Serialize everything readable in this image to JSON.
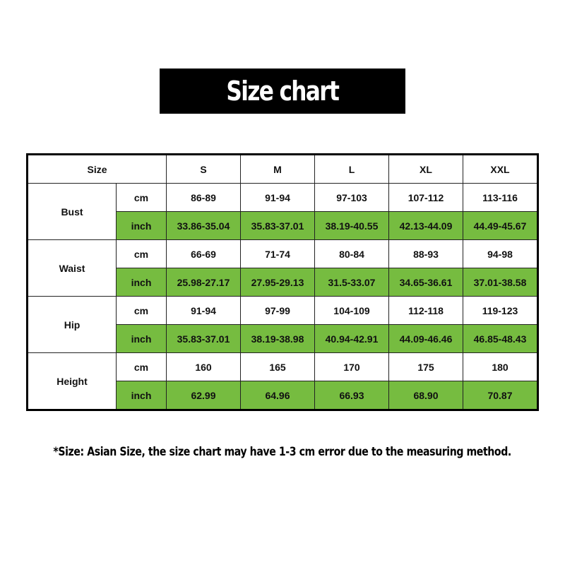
{
  "title": "Size chart",
  "accent_color": "#76bc40",
  "header": {
    "size_label": "Size",
    "sizes": [
      "S",
      "M",
      "L",
      "XL",
      "XXL"
    ]
  },
  "rows": [
    {
      "label": "Bust",
      "cm_unit": "cm",
      "cm": [
        "86-89",
        "91-94",
        "97-103",
        "107-112",
        "113-116"
      ],
      "inch_unit": "inch",
      "inch": [
        "33.86-35.04",
        "35.83-37.01",
        "38.19-40.55",
        "42.13-44.09",
        "44.49-45.67"
      ]
    },
    {
      "label": "Waist",
      "cm_unit": "cm",
      "cm": [
        "66-69",
        "71-74",
        "80-84",
        "88-93",
        "94-98"
      ],
      "inch_unit": "inch",
      "inch": [
        "25.98-27.17",
        "27.95-29.13",
        "31.5-33.07",
        "34.65-36.61",
        "37.01-38.58"
      ]
    },
    {
      "label": "Hip",
      "cm_unit": "cm",
      "cm": [
        "91-94",
        "97-99",
        "104-109",
        "112-118",
        "119-123"
      ],
      "inch_unit": "inch",
      "inch": [
        "35.83-37.01",
        "38.19-38.98",
        "40.94-42.91",
        "44.09-46.46",
        "46.85-48.43"
      ]
    },
    {
      "label": "Height",
      "cm_unit": "cm",
      "cm": [
        "160",
        "165",
        "170",
        "175",
        "180"
      ],
      "inch_unit": "inch",
      "inch": [
        "62.99",
        "64.96",
        "66.93",
        "68.90",
        "70.87"
      ]
    }
  ],
  "note": "*Size: Asian Size, the size chart may have 1-3 cm error due to the measuring method."
}
